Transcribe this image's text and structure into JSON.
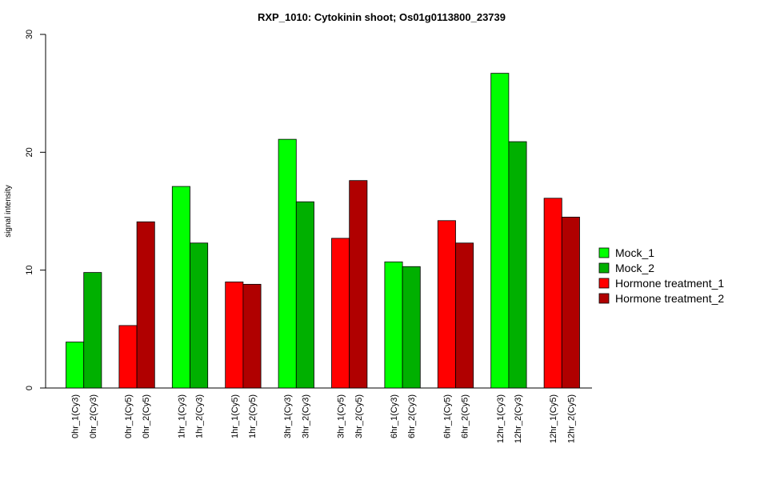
{
  "chart_data": {
    "type": "bar",
    "title": "RXP_1010: Cytokinin shoot; Os01g0113800_23739",
    "xlabel": "",
    "ylabel": "signal intensity",
    "ylim": [
      0,
      30
    ],
    "yticks": [
      "0",
      "10",
      "20",
      "30"
    ],
    "grid": false,
    "legend_position": "right",
    "legend": [
      {
        "label": "Mock_1",
        "color": "#00FF00"
      },
      {
        "label": "Mock_2",
        "color": "#00B000"
      },
      {
        "label": "Hormone treatment_1",
        "color": "#FF0000"
      },
      {
        "label": "Hormone treatment_2",
        "color": "#B00000"
      }
    ],
    "bars": [
      {
        "label": "0hr_1(Cy3)",
        "value": 3.9,
        "series": 0
      },
      {
        "label": "0hr_2(Cy3)",
        "value": 9.8,
        "series": 1
      },
      {
        "label": "0hr_1(Cy5)",
        "value": 5.3,
        "series": 2
      },
      {
        "label": "0hr_2(Cy5)",
        "value": 14.1,
        "series": 3
      },
      {
        "label": "1hr_1(Cy3)",
        "value": 17.1,
        "series": 0
      },
      {
        "label": "1hr_2(Cy3)",
        "value": 12.3,
        "series": 1
      },
      {
        "label": "1hr_1(Cy5)",
        "value": 9.0,
        "series": 2
      },
      {
        "label": "1hr_2(Cy5)",
        "value": 8.8,
        "series": 3
      },
      {
        "label": "3hr_1(Cy3)",
        "value": 21.1,
        "series": 0
      },
      {
        "label": "3hr_2(Cy3)",
        "value": 15.8,
        "series": 1
      },
      {
        "label": "3hr_1(Cy5)",
        "value": 12.7,
        "series": 2
      },
      {
        "label": "3hr_2(Cy5)",
        "value": 17.6,
        "series": 3
      },
      {
        "label": "6hr_1(Cy3)",
        "value": 10.7,
        "series": 0
      },
      {
        "label": "6hr_2(Cy3)",
        "value": 10.3,
        "series": 1
      },
      {
        "label": "6hr_1(Cy5)",
        "value": 14.2,
        "series": 2
      },
      {
        "label": "6hr_2(Cy5)",
        "value": 12.3,
        "series": 3
      },
      {
        "label": "12hr_1(Cy3)",
        "value": 26.7,
        "series": 0
      },
      {
        "label": "12hr_2(Cy3)",
        "value": 20.9,
        "series": 1
      },
      {
        "label": "12hr_1(Cy5)",
        "value": 16.1,
        "series": 2
      },
      {
        "label": "12hr_2(Cy5)",
        "value": 14.5,
        "series": 3
      }
    ]
  }
}
